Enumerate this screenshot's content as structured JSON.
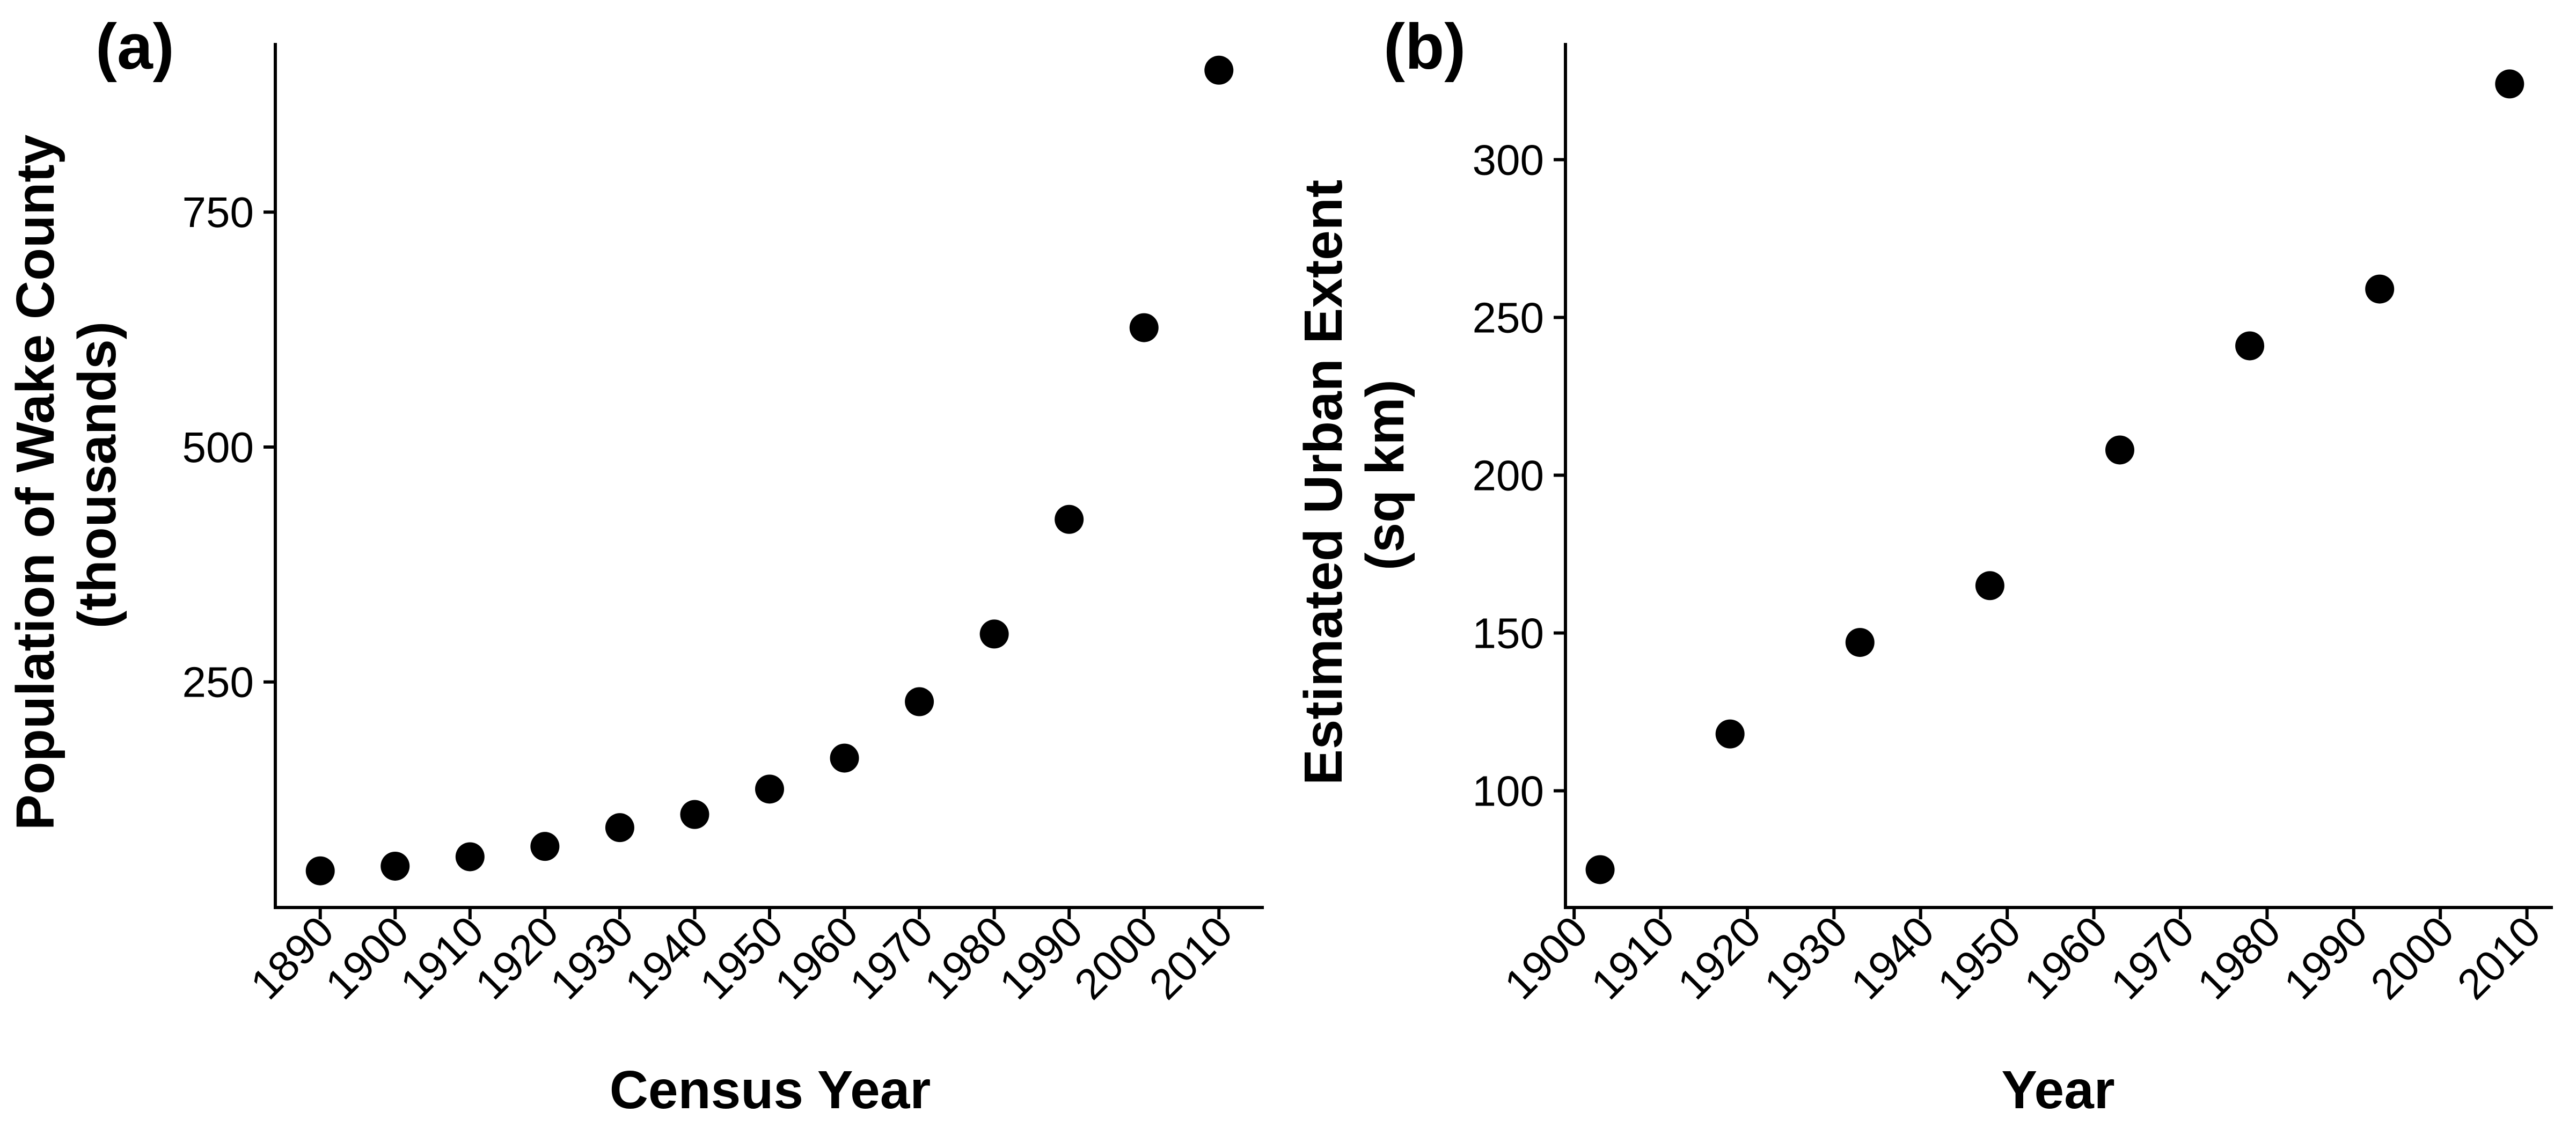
{
  "chart_data": [
    {
      "type": "scatter",
      "panel_label": "(a)",
      "xlabel": "Census Year",
      "ylabel": [
        "Population of Wake County",
        "(thousands)"
      ],
      "xticks": [
        1890,
        1900,
        1910,
        1920,
        1930,
        1940,
        1950,
        1960,
        1970,
        1980,
        1990,
        2000,
        2010
      ],
      "yticks": [
        250,
        500,
        750
      ],
      "xlim": [
        1884,
        2016
      ],
      "ylim": [
        10,
        930
      ],
      "series": [
        {
          "x": [
            1890,
            1900,
            1910,
            1920,
            1930,
            1940,
            1950,
            1960,
            1970,
            1980,
            1990,
            2000,
            2010
          ],
          "y": [
            49,
            54,
            64,
            75,
            95,
            109,
            136,
            169,
            229,
            301,
            423,
            627,
            901
          ]
        }
      ],
      "marker_color": "#000000",
      "grid": false
    },
    {
      "type": "scatter",
      "panel_label": "(b)",
      "xlabel": "Year",
      "ylabel": [
        "Estimated Urban Extent",
        "(sq km)"
      ],
      "xticks": [
        1900,
        1910,
        1920,
        1930,
        1940,
        1950,
        1960,
        1970,
        1980,
        1990,
        2000,
        2010
      ],
      "yticks": [
        100,
        150,
        200,
        250,
        300
      ],
      "xlim": [
        1899,
        2013
      ],
      "ylim": [
        63,
        337
      ],
      "series": [
        {
          "x": [
            1903,
            1918,
            1933,
            1948,
            1963,
            1978,
            1993,
            2008
          ],
          "y": [
            75,
            118,
            147,
            165,
            208,
            241,
            259,
            324
          ]
        }
      ],
      "marker_color": "#000000",
      "grid": false
    }
  ]
}
